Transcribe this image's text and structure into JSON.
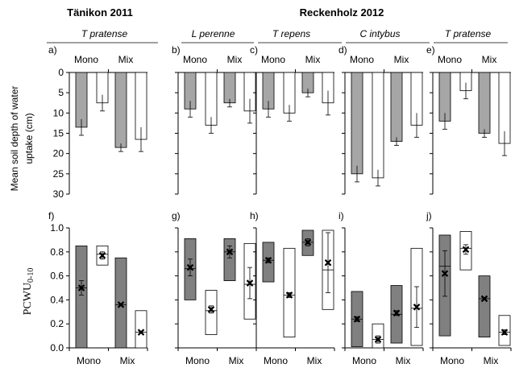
{
  "figure": {
    "headers": [
      {
        "text": "Tänikon 2011"
      },
      {
        "text": "Reckenholz 2012"
      }
    ],
    "y_label_top_line1": "Mean soil depth of water",
    "y_label_top_line2": "uptake (cm)",
    "y_label_bottom": "PCWU",
    "y_label_bottom_sub": "0-10",
    "group_labels": [
      "Mono",
      "Mix"
    ],
    "colors": {
      "grey": "#a6a6a6",
      "grey_dark": "#808080",
      "white": "#ffffff",
      "axis": "#000000"
    }
  },
  "chart_data": [
    {
      "type": "bar",
      "panel": "a)",
      "species": "T pratense",
      "site": "Tänikon 2011",
      "ylabel": "Mean soil depth of water uptake (cm)",
      "ylim": [
        0,
        30
      ],
      "inverted": true,
      "yticks": [
        0,
        5,
        10,
        15,
        20,
        25,
        30
      ],
      "groups": [
        "Mono",
        "Mix"
      ],
      "bars": [
        {
          "group": "Mono",
          "fill": "grey",
          "value": 13.5,
          "err": 2
        },
        {
          "group": "Mono",
          "fill": "white",
          "value": 7.5,
          "err": 2
        },
        {
          "group": "Mix",
          "fill": "grey",
          "value": 18.5,
          "err": 1
        },
        {
          "group": "Mix",
          "fill": "white",
          "value": 16.5,
          "err": 3
        }
      ]
    },
    {
      "type": "bar",
      "panel": "b)",
      "species": "L perenne",
      "site": "Reckenholz 2012",
      "ylim": [
        0,
        30
      ],
      "inverted": true,
      "groups": [
        "Mono",
        "Mix"
      ],
      "bars": [
        {
          "group": "Mono",
          "fill": "grey",
          "value": 9,
          "err": 2
        },
        {
          "group": "Mono",
          "fill": "white",
          "value": 13,
          "err": 2
        },
        {
          "group": "Mix",
          "fill": "grey",
          "value": 7.5,
          "err": 1
        },
        {
          "group": "Mix",
          "fill": "white",
          "value": 9.5,
          "err": 3
        }
      ]
    },
    {
      "type": "bar",
      "panel": "c)",
      "species": "T repens",
      "site": "Reckenholz 2012",
      "ylim": [
        0,
        30
      ],
      "inverted": true,
      "groups": [
        "Mono",
        "Mix"
      ],
      "bars": [
        {
          "group": "Mono",
          "fill": "grey",
          "value": 9,
          "err": 2
        },
        {
          "group": "Mono",
          "fill": "white",
          "value": 10,
          "err": 2
        },
        {
          "group": "Mix",
          "fill": "grey",
          "value": 5,
          "err": 1
        },
        {
          "group": "Mix",
          "fill": "white",
          "value": 7.5,
          "err": 3
        }
      ]
    },
    {
      "type": "bar",
      "panel": "d)",
      "species": "C intybus",
      "site": "Reckenholz 2012",
      "ylim": [
        0,
        30
      ],
      "inverted": true,
      "groups": [
        "Mono",
        "Mix"
      ],
      "bars": [
        {
          "group": "Mono",
          "fill": "grey",
          "value": 25,
          "err": 2
        },
        {
          "group": "Mono",
          "fill": "white",
          "value": 26,
          "err": 2
        },
        {
          "group": "Mix",
          "fill": "grey",
          "value": 17,
          "err": 1
        },
        {
          "group": "Mix",
          "fill": "white",
          "value": 13,
          "err": 3
        }
      ]
    },
    {
      "type": "bar",
      "panel": "e)",
      "species": "T pratense",
      "site": "Reckenholz 2012",
      "ylim": [
        0,
        30
      ],
      "inverted": true,
      "groups": [
        "Mono",
        "Mix"
      ],
      "bars": [
        {
          "group": "Mono",
          "fill": "grey",
          "value": 12,
          "err": 2
        },
        {
          "group": "Mono",
          "fill": "white",
          "value": 4.5,
          "err": 2
        },
        {
          "group": "Mix",
          "fill": "grey",
          "value": 15,
          "err": 1
        },
        {
          "group": "Mix",
          "fill": "white",
          "value": 17.5,
          "err": 3
        }
      ]
    },
    {
      "type": "box",
      "panel": "f)",
      "ylabel": "PCWU0-10",
      "ylim": [
        0,
        1.0
      ],
      "yticks": [
        0.0,
        0.2,
        0.4,
        0.6,
        0.8,
        1.0
      ],
      "groups": [
        "Mono",
        "Mix"
      ],
      "boxes": [
        {
          "group": "Mono",
          "fill": "grey",
          "low": 0.0,
          "high": 0.85,
          "median": 0.5,
          "mean": 0.5,
          "err": 0.06
        },
        {
          "group": "Mono",
          "fill": "white",
          "low": 0.69,
          "high": 0.85,
          "median": 0.78,
          "mean": 0.77,
          "err": 0.03
        },
        {
          "group": "Mix",
          "fill": "grey",
          "low": 0.0,
          "high": 0.75,
          "median": 0.36,
          "mean": 0.36,
          "err": 0.01
        },
        {
          "group": "Mix",
          "fill": "white",
          "low": 0.0,
          "high": 0.31,
          "median": 0.13,
          "mean": 0.13,
          "err": 0.01
        }
      ]
    },
    {
      "type": "box",
      "panel": "g)",
      "ylim": [
        0,
        1.0
      ],
      "groups": [
        "Mono",
        "Mix"
      ],
      "boxes": [
        {
          "group": "Mono",
          "fill": "grey",
          "low": 0.4,
          "high": 0.91,
          "median": 0.66,
          "mean": 0.67,
          "err": 0.07
        },
        {
          "group": "Mono",
          "fill": "white",
          "low": 0.11,
          "high": 0.48,
          "median": 0.31,
          "mean": 0.32,
          "err": 0.03
        },
        {
          "group": "Mix",
          "fill": "grey",
          "low": 0.56,
          "high": 0.91,
          "median": 0.8,
          "mean": 0.8,
          "err": 0.05
        },
        {
          "group": "Mix",
          "fill": "white",
          "low": 0.24,
          "high": 0.87,
          "median": 0.53,
          "mean": 0.54,
          "err": 0.13
        }
      ]
    },
    {
      "type": "box",
      "panel": "h)",
      "ylim": [
        0,
        1.0
      ],
      "groups": [
        "Mono",
        "Mix"
      ],
      "boxes": [
        {
          "group": "Mono",
          "fill": "grey",
          "low": 0.55,
          "high": 0.88,
          "median": 0.73,
          "mean": 0.73,
          "err": 0.02
        },
        {
          "group": "Mono",
          "fill": "white",
          "low": 0.09,
          "high": 0.83,
          "median": 0.44,
          "mean": 0.44,
          "err": 0.02
        },
        {
          "group": "Mix",
          "fill": "grey",
          "low": 0.77,
          "high": 0.98,
          "median": 0.88,
          "mean": 0.88,
          "err": 0.03
        },
        {
          "group": "Mix",
          "fill": "white",
          "low": 0.32,
          "high": 0.98,
          "median": 0.65,
          "mean": 0.71,
          "err": 0.25
        }
      ]
    },
    {
      "type": "box",
      "panel": "i)",
      "ylim": [
        0,
        1.0
      ],
      "groups": [
        "Mono",
        "Mix"
      ],
      "boxes": [
        {
          "group": "Mono",
          "fill": "grey",
          "low": 0.01,
          "high": 0.47,
          "median": 0.24,
          "mean": 0.24,
          "err": 0.02
        },
        {
          "group": "Mono",
          "fill": "white",
          "low": 0.0,
          "high": 0.2,
          "median": 0.07,
          "mean": 0.07,
          "err": 0.03
        },
        {
          "group": "Mix",
          "fill": "grey",
          "low": 0.04,
          "high": 0.52,
          "median": 0.28,
          "mean": 0.29,
          "err": 0.02
        },
        {
          "group": "Mix",
          "fill": "white",
          "low": 0.02,
          "high": 0.83,
          "median": 0.33,
          "mean": 0.34,
          "err": 0.17
        }
      ]
    },
    {
      "type": "box",
      "panel": "j)",
      "ylim": [
        0,
        1.0
      ],
      "groups": [
        "Mono",
        "Mix"
      ],
      "boxes": [
        {
          "group": "Mono",
          "fill": "grey",
          "low": 0.1,
          "high": 0.94,
          "median": 0.68,
          "mean": 0.62,
          "err": 0.19
        },
        {
          "group": "Mono",
          "fill": "white",
          "low": 0.65,
          "high": 0.97,
          "median": 0.83,
          "mean": 0.82,
          "err": 0.04
        },
        {
          "group": "Mix",
          "fill": "grey",
          "low": 0.09,
          "high": 0.6,
          "median": 0.41,
          "mean": 0.41,
          "err": 0.01
        },
        {
          "group": "Mix",
          "fill": "white",
          "low": 0.02,
          "high": 0.27,
          "median": 0.13,
          "mean": 0.13,
          "err": 0.02
        }
      ]
    }
  ]
}
